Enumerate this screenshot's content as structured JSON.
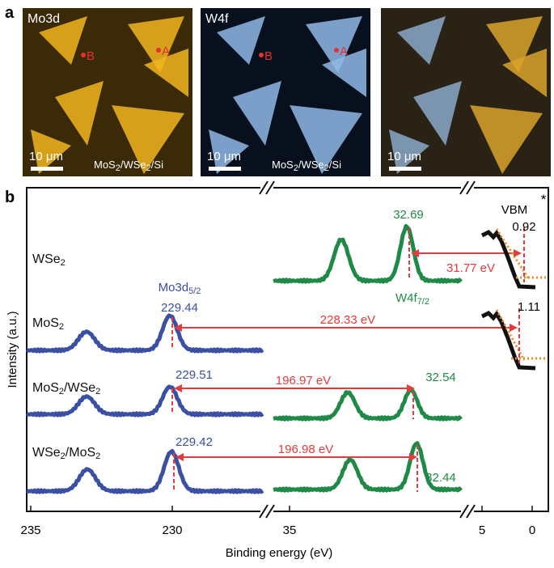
{
  "panel_a": {
    "label": "a",
    "images": [
      {
        "title": "Mo3d",
        "points": [
          "B",
          "A"
        ],
        "scale": "10 μm",
        "sample": [
          "MoS",
          "2",
          "/WSe",
          "2",
          "/Si"
        ]
      },
      {
        "title": "W4f",
        "points": [
          "B",
          "A"
        ],
        "scale": "10 μm",
        "sample": [
          "MoS",
          "2",
          "/WSe",
          "2",
          "/Si"
        ]
      },
      {
        "scale": "10 μm"
      }
    ]
  },
  "panel_b": {
    "label": "b",
    "y_label": "Intensity (a.u.)",
    "x_label": "Binding energy (eV)",
    "x_ticks": [
      "235",
      "230",
      "35",
      "5",
      "0"
    ],
    "rows": [
      {
        "sample": [
          "WSe",
          "2"
        ],
        "w_peak": "32.69",
        "w_name": [
          "W4f",
          "7/2"
        ],
        "gap": "31.77 eV",
        "vbm": "0.92"
      },
      {
        "sample": [
          "MoS",
          "2"
        ],
        "mo_peak": "229.44",
        "mo_name": [
          "Mo3d",
          "5/2"
        ],
        "gap": "228.33 eV",
        "vbm": "1.11"
      },
      {
        "sample": [
          "MoS",
          "2",
          "/WSe",
          "2"
        ],
        "mo_peak": "229.51",
        "w_peak": "32.54",
        "gap": "196.97 eV"
      },
      {
        "sample": [
          "WSe",
          "2",
          "/MoS",
          "2"
        ],
        "mo_peak": "229.42",
        "w_peak": "32.44",
        "gap": "196.98 eV"
      }
    ],
    "vbm_label": "VBM",
    "star": "*"
  }
}
